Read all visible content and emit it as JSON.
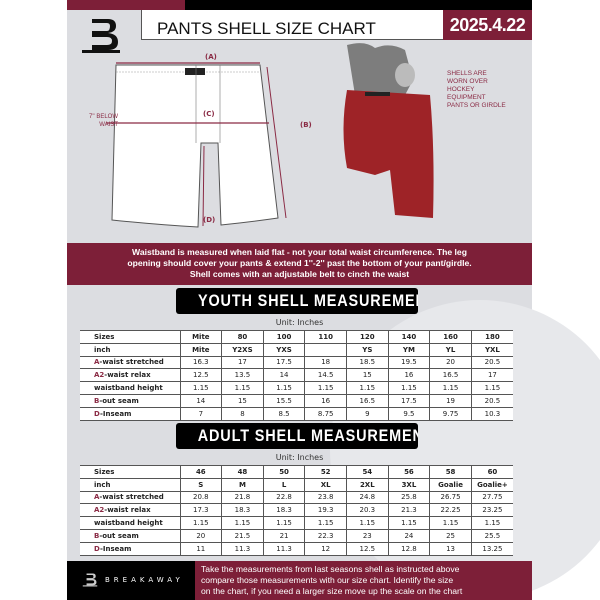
{
  "header": {
    "title": "PANTS SHELL SIZE CHART",
    "date": "2025.4.22"
  },
  "diagram": {
    "label_a": "(A)",
    "label_b": "(B)",
    "label_c": "(C)",
    "label_d": "(D)",
    "below_waist": "7'' BELOW WAIST",
    "note": "SHELLS ARE WORN OVER HOCKEY EQUIPMENT PANTS OR GIRDLE"
  },
  "instructions": [
    "Waistband is measured when laid flat - not your total waist circumference. The leg",
    "opening should cover your pants & extend 1''-2'' past the bottom of your pant/girdle.",
    "Shell comes with an adjustable belt to cinch the waist"
  ],
  "youth": {
    "title": "YOUTH SHELL MEASUREMENTS",
    "unit": "Unit: Inches",
    "rows": [
      {
        "prefix": "",
        "label": "Sizes",
        "values": [
          "Mite",
          "80",
          "100",
          "110",
          "120",
          "140",
          "160",
          "180"
        ]
      },
      {
        "prefix": "",
        "label": "inch",
        "values": [
          "Mite",
          "Y2XS",
          "YXS",
          "",
          "YS",
          "YM",
          "YL",
          "YXL"
        ]
      },
      {
        "prefix": "A",
        "label": "-waist stretched",
        "values": [
          "16.3",
          "17",
          "17.5",
          "18",
          "18.5",
          "19.5",
          "20",
          "20.5"
        ]
      },
      {
        "prefix": "A2",
        "label": "-waist relax",
        "values": [
          "12.5",
          "13.5",
          "14",
          "14.5",
          "15",
          "16",
          "16.5",
          "17"
        ]
      },
      {
        "prefix": "",
        "label": "waistband height",
        "values": [
          "1.15",
          "1.15",
          "1.15",
          "1.15",
          "1.15",
          "1.15",
          "1.15",
          "1.15"
        ]
      },
      {
        "prefix": "B",
        "label": "-out seam",
        "values": [
          "14",
          "15",
          "15.5",
          "16",
          "16.5",
          "17.5",
          "19",
          "20.5"
        ]
      },
      {
        "prefix": "D",
        "label": "-Inseam",
        "values": [
          "7",
          "8",
          "8.5",
          "8.75",
          "9",
          "9.5",
          "9.75",
          "10.3"
        ]
      }
    ]
  },
  "adult": {
    "title": "ADULT SHELL MEASUREMENTS",
    "unit": "Unit: Inches",
    "rows": [
      {
        "prefix": "",
        "label": "Sizes",
        "values": [
          "46",
          "48",
          "50",
          "52",
          "54",
          "56",
          "58",
          "60"
        ]
      },
      {
        "prefix": "",
        "label": "inch",
        "values": [
          "S",
          "M",
          "L",
          "XL",
          "2XL",
          "3XL",
          "Goalie",
          "Goalie+"
        ]
      },
      {
        "prefix": "A",
        "label": "-waist stretched",
        "values": [
          "20.8",
          "21.8",
          "22.8",
          "23.8",
          "24.8",
          "25.8",
          "26.75",
          "27.75"
        ]
      },
      {
        "prefix": "A2",
        "label": "-waist relax",
        "values": [
          "17.3",
          "18.3",
          "18.3",
          "19.3",
          "20.3",
          "21.3",
          "22.25",
          "23.25"
        ]
      },
      {
        "prefix": "",
        "label": "waistband height",
        "values": [
          "1.15",
          "1.15",
          "1.15",
          "1.15",
          "1.15",
          "1.15",
          "1.15",
          "1.15"
        ]
      },
      {
        "prefix": "B",
        "label": "-out seam",
        "values": [
          "20",
          "21.5",
          "21",
          "22.3",
          "23",
          "24",
          "25",
          "25.5"
        ]
      },
      {
        "prefix": "D",
        "label": "-Inseam",
        "values": [
          "11",
          "11.3",
          "11.3",
          "12",
          "12.5",
          "12.8",
          "13",
          "13.25"
        ]
      }
    ]
  },
  "footer": {
    "brand": "BREAKAWAY",
    "text": [
      "Take the measurements from last seasons shell as instructed above",
      "compare those measurements  with our size chart. Identify the size",
      "on the chart, if you need a larger size move up the scale on the chart"
    ]
  },
  "colors": {
    "maroon": "#7d1f38",
    "panel": "#dcdde1"
  }
}
